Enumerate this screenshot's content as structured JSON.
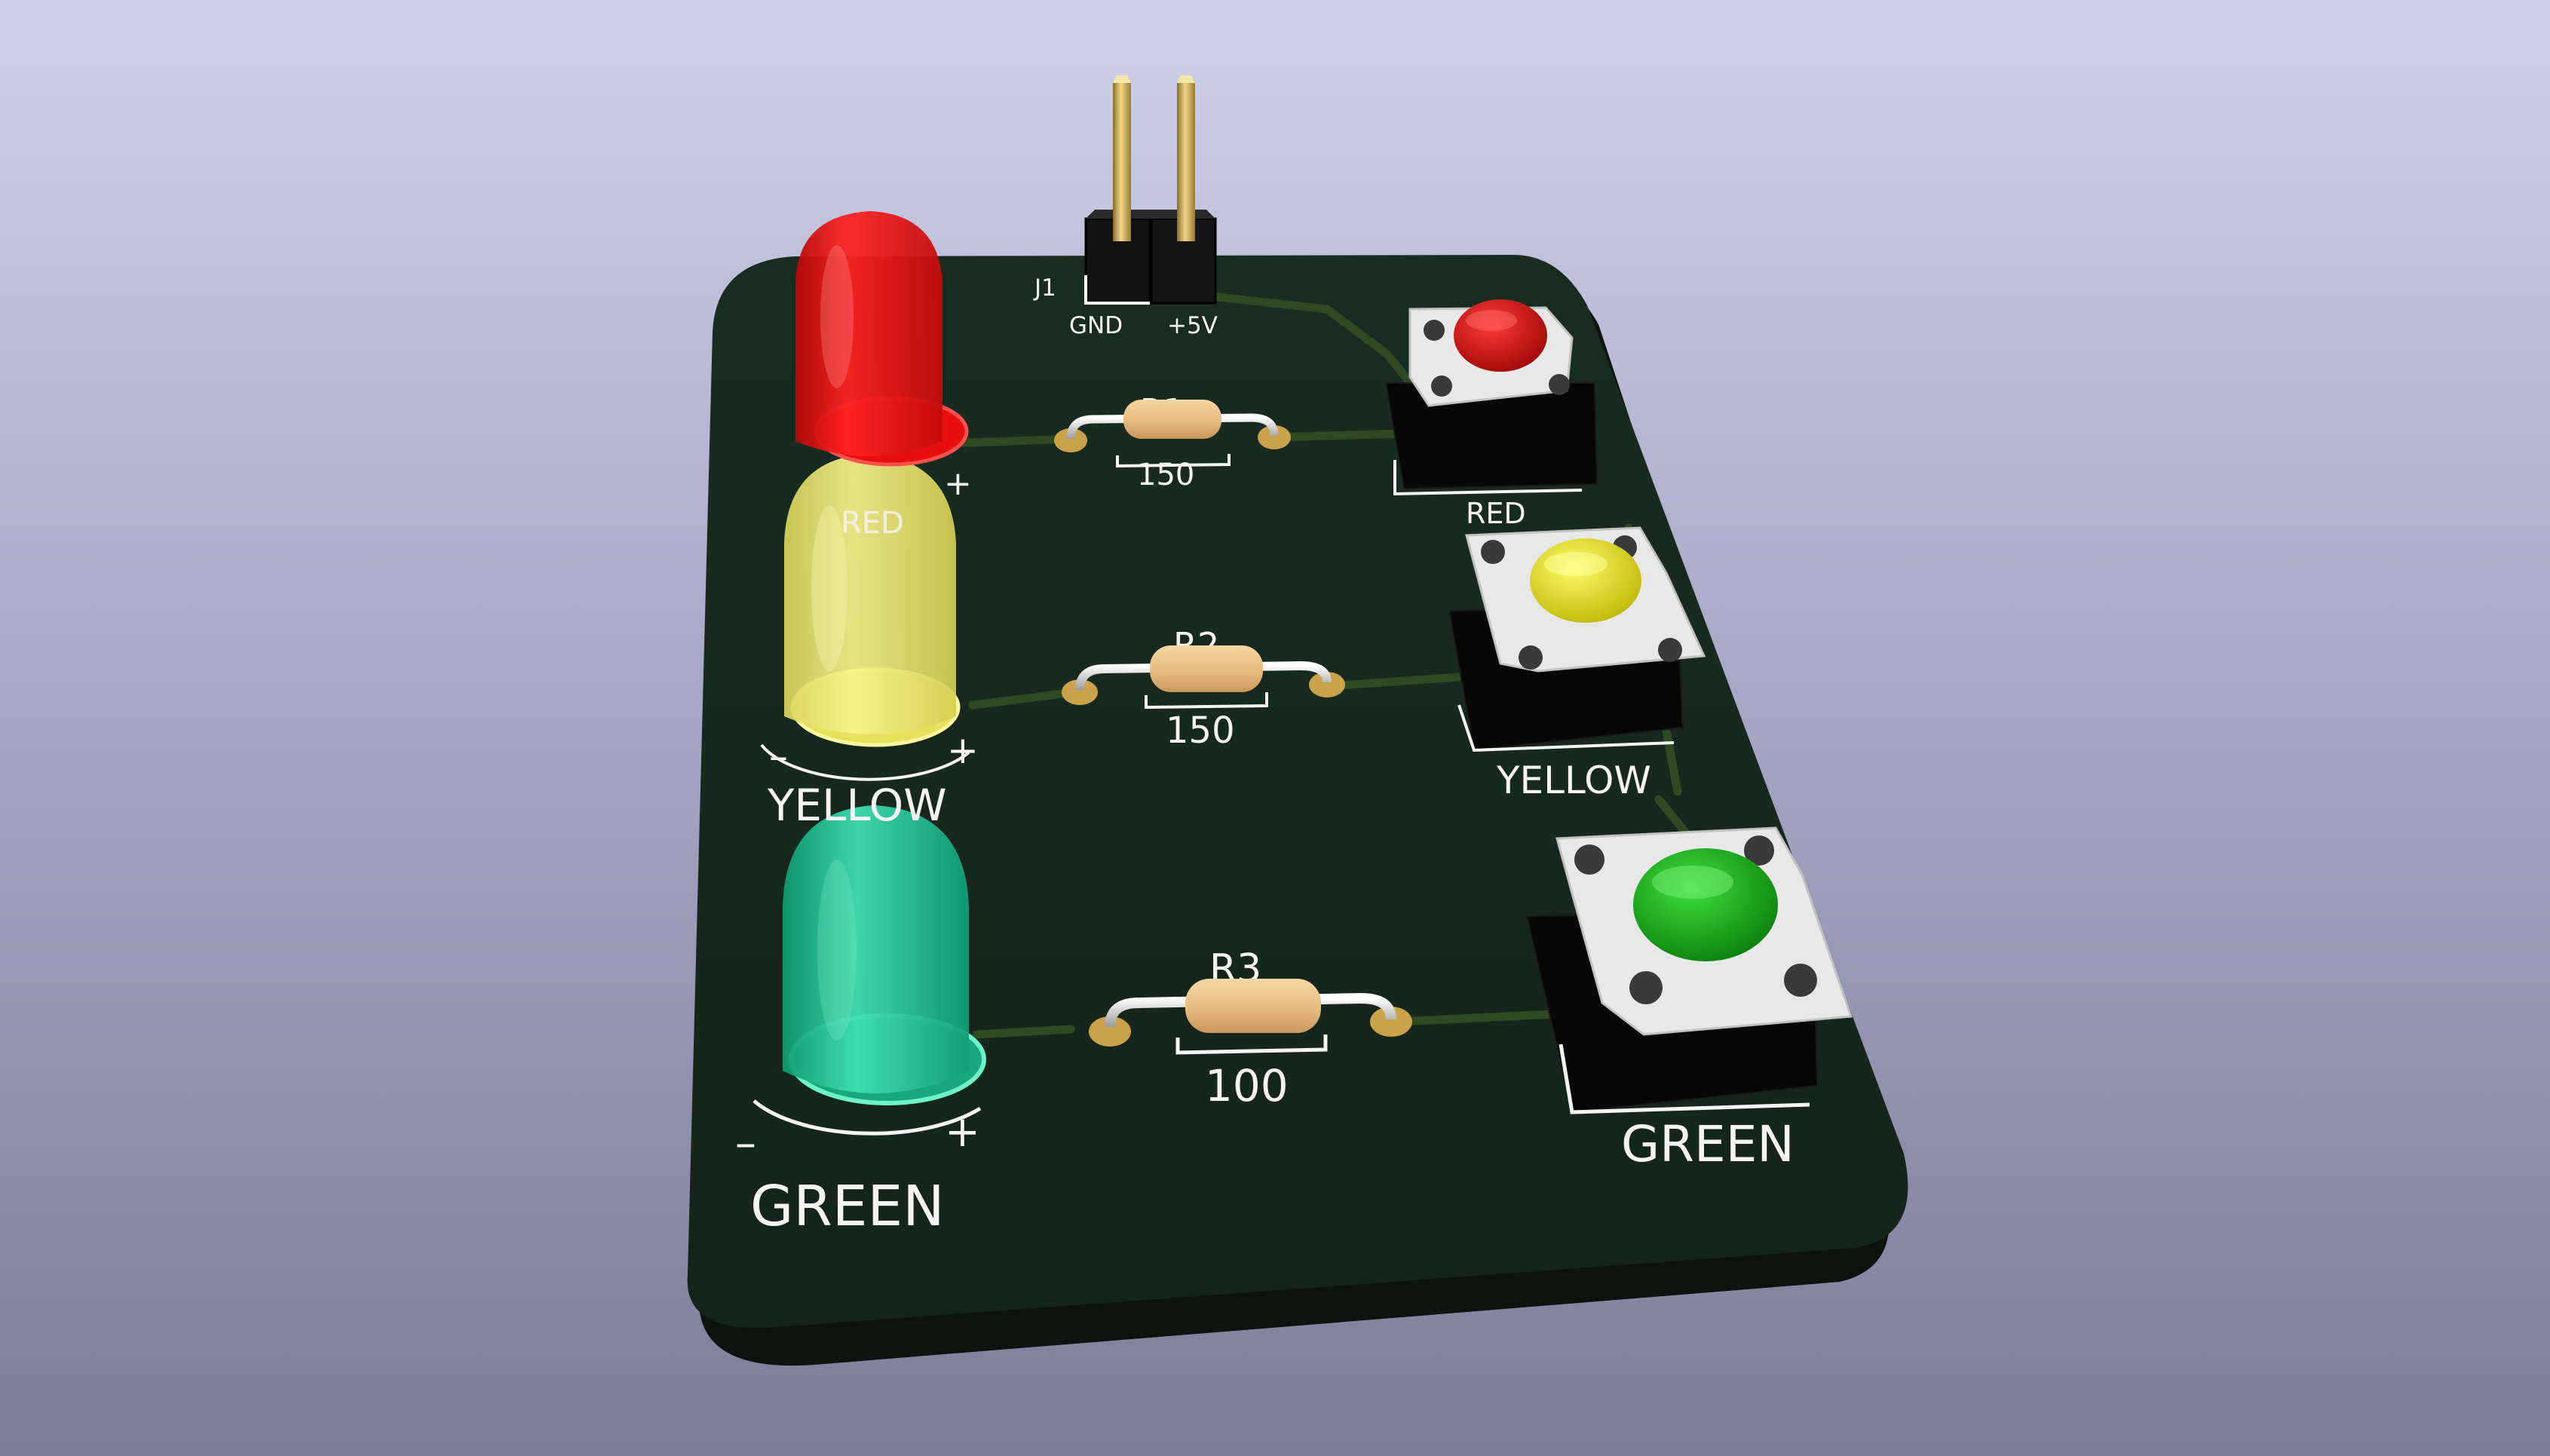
{
  "viewer": {
    "background_top": "#cfd0e8",
    "background_bottom": "#7c7d98"
  },
  "board": {
    "soldermask_color": "#13241c",
    "edge_color": "#0d1510",
    "silkscreen_color": "#f4f4f4",
    "pad_color": "#c9a24a"
  },
  "connector": {
    "ref": "J1",
    "pin1_label": "GND",
    "pin2_label": "+5V"
  },
  "leds": [
    {
      "color_name": "RED",
      "minus": "",
      "plus": "+",
      "body_color": "#ee1111"
    },
    {
      "color_name": "YELLOW",
      "minus": "–",
      "plus": "+",
      "body_color": "#ecea6a"
    },
    {
      "color_name": "GREEN",
      "minus": "–",
      "plus": "+",
      "body_color": "#22c79a"
    }
  ],
  "resistors": [
    {
      "ref": "R1",
      "value": "150"
    },
    {
      "ref": "R2",
      "value": "150"
    },
    {
      "ref": "R3",
      "value": "100"
    }
  ],
  "buttons": [
    {
      "label": "RED",
      "cap_color": "#d41414"
    },
    {
      "label": "YELLOW",
      "cap_color": "#e8e020"
    },
    {
      "label": "GREEN",
      "cap_color": "#1fb51f"
    }
  ]
}
